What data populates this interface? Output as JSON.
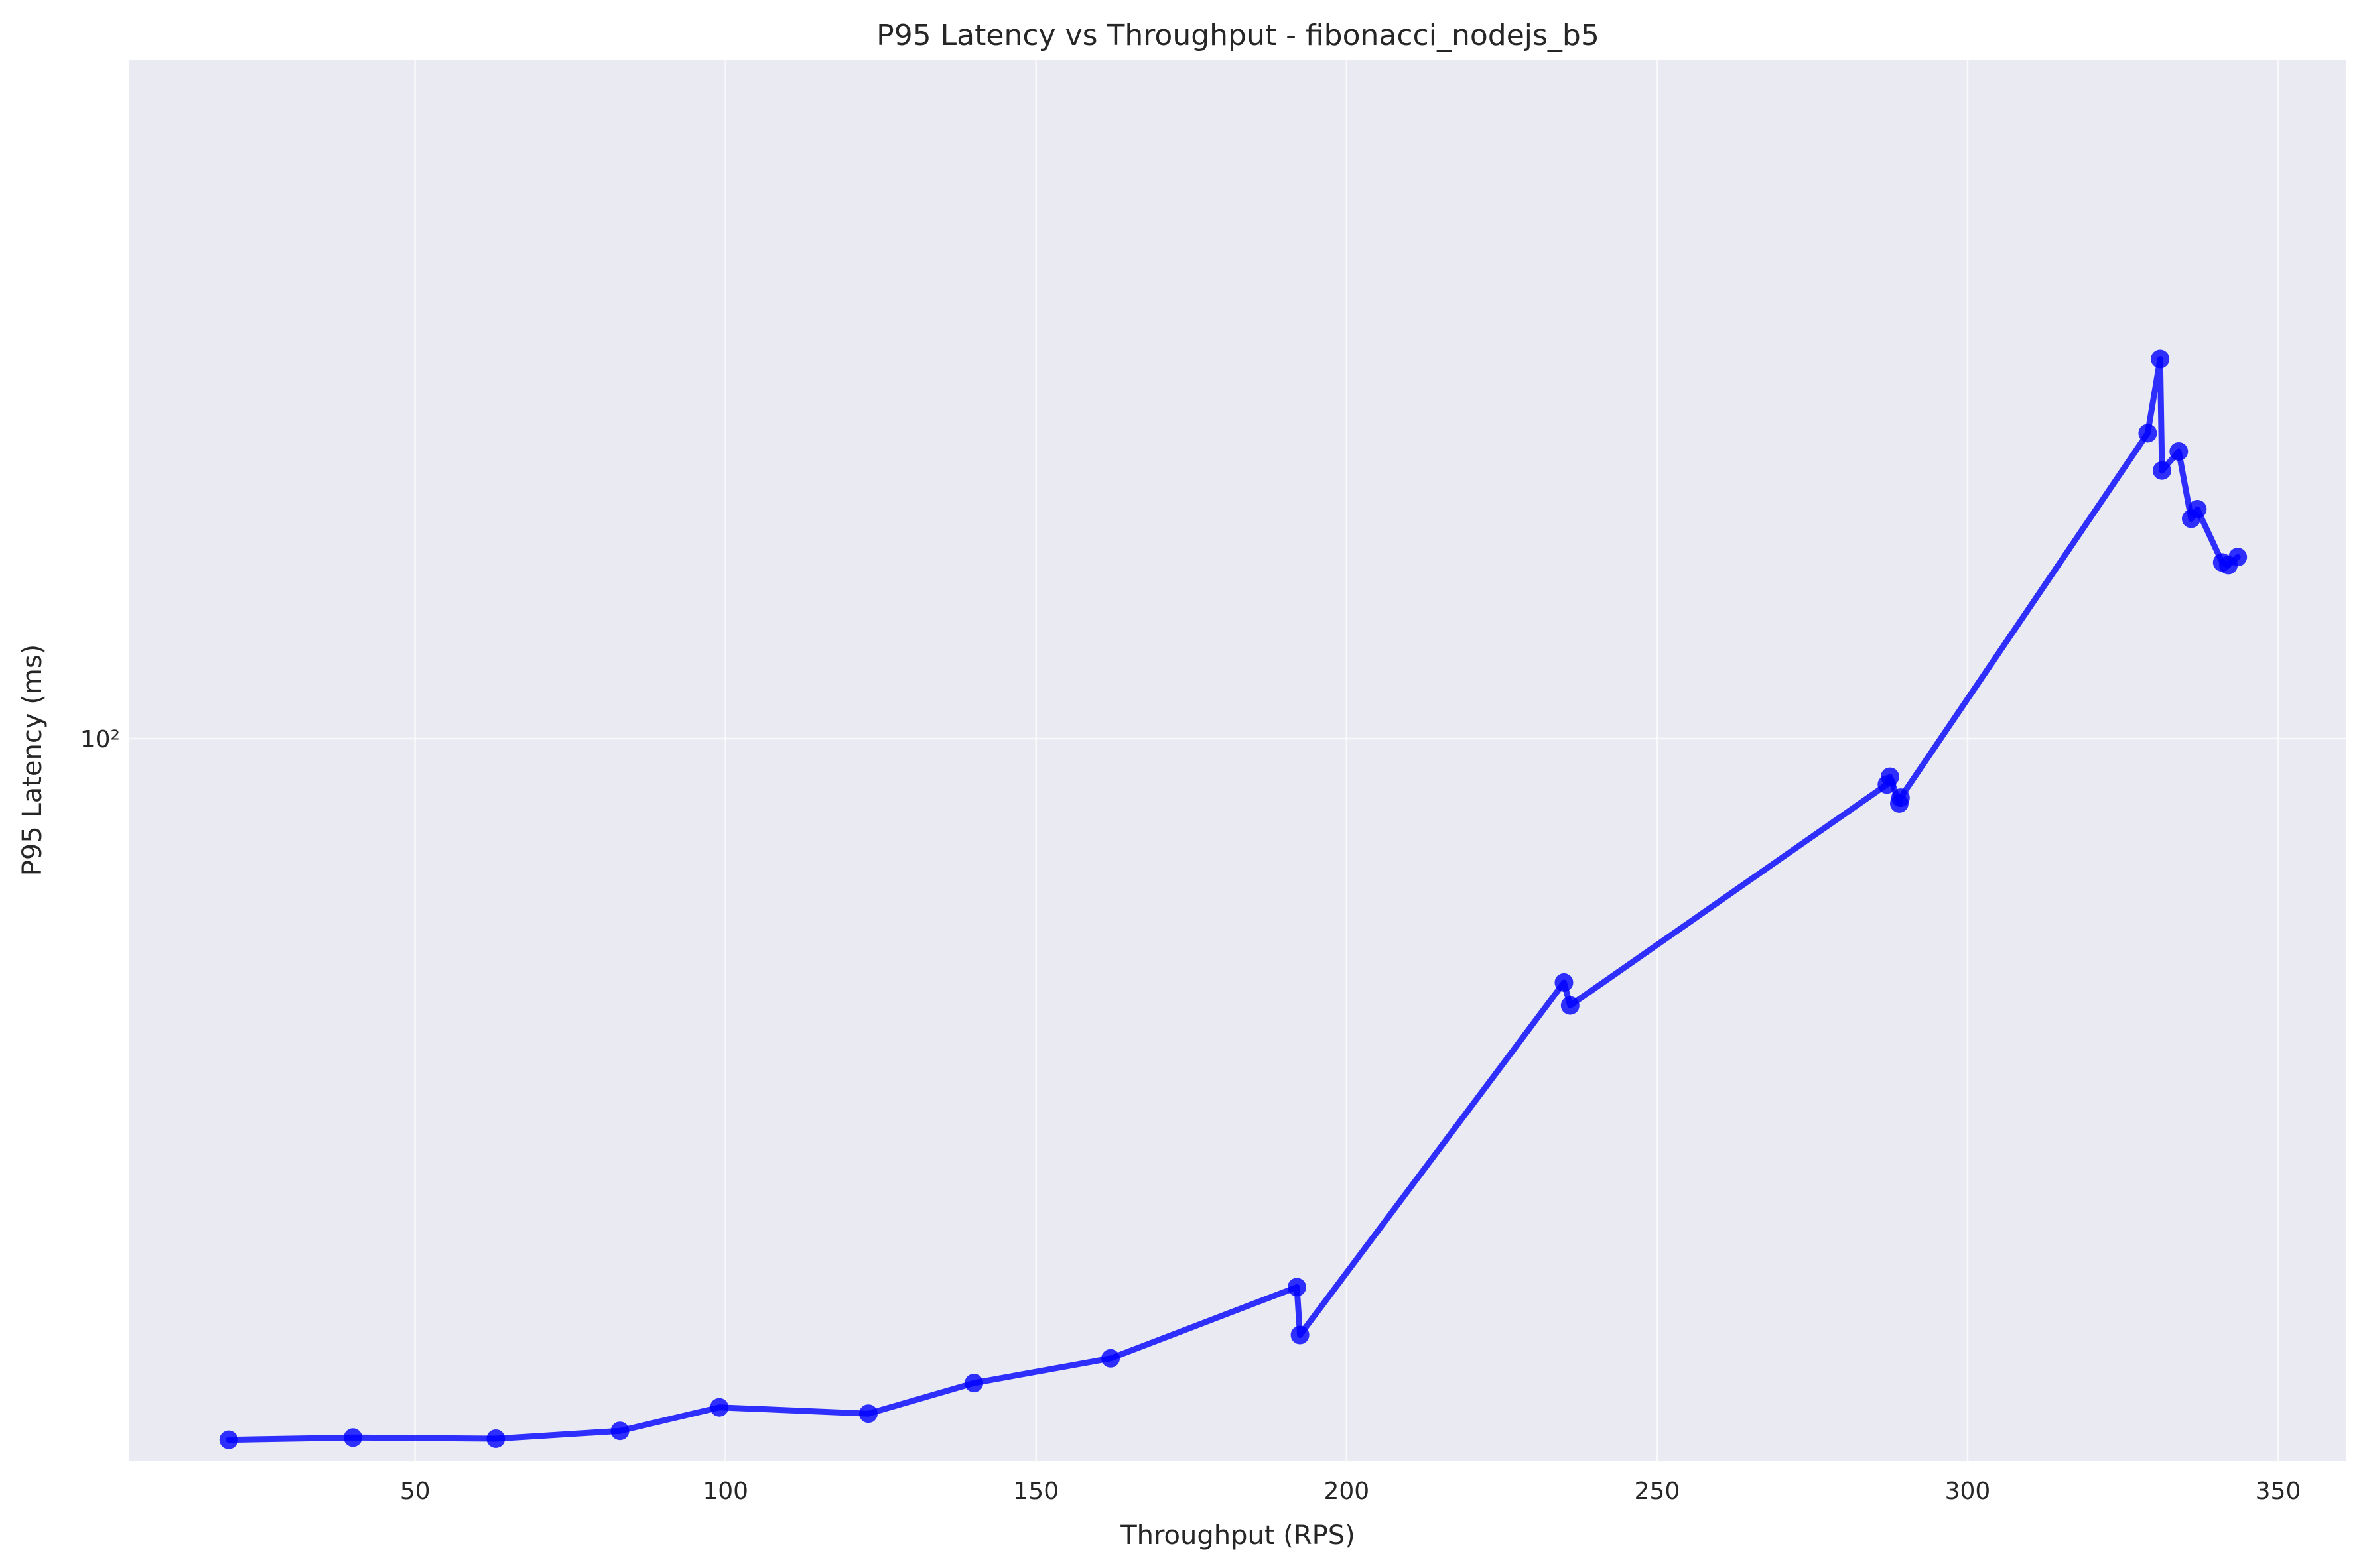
{
  "chart_data": {
    "type": "line",
    "title": "P95 Latency vs Throughput - fibonacci_nodejs_b5",
    "xlabel": "Throughput (RPS)",
    "ylabel": "P95 Latency (ms)",
    "xlim": [
      4,
      361
    ],
    "ylim": [
      17.5,
      515
    ],
    "yscale": "log",
    "grid": true,
    "x_ticks": [
      50,
      100,
      150,
      200,
      250,
      300,
      350
    ],
    "y_ticks": [
      100
    ],
    "y_tick_labels": [
      "10²"
    ],
    "colors": {
      "line": "#0000ff",
      "plot_bg": "#eaeaf2",
      "grid": "#ffffff"
    },
    "series": [
      {
        "x": [
          20,
          40,
          63,
          83,
          99,
          123,
          140,
          162,
          192,
          192.5,
          235,
          236,
          287,
          287.5,
          289,
          289.2,
          329,
          331,
          331.3,
          334,
          336,
          337,
          341,
          342,
          343.5
        ],
        "y": [
          18.4,
          18.5,
          18.45,
          18.8,
          19.9,
          19.6,
          21.1,
          22.4,
          26.6,
          23.7,
          55.5,
          52.5,
          89.5,
          91.2,
          85.5,
          86.7,
          209,
          250,
          191,
          200,
          170,
          174,
          153,
          152,
          155
        ]
      }
    ]
  }
}
